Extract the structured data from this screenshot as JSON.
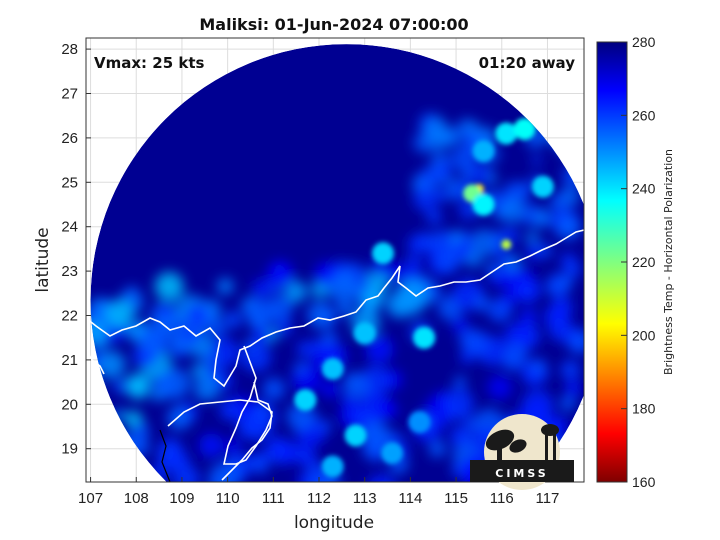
{
  "chart_data": {
    "type": "heatmap",
    "title": "Maliksi: 01-Jun-2024 07:00:00",
    "xlabel": "longitude",
    "ylabel": "latitude",
    "xlim": [
      106.9,
      117.8
    ],
    "ylim": [
      18.25,
      28.25
    ],
    "xticks": [
      107,
      108,
      109,
      110,
      111,
      112,
      113,
      114,
      115,
      116,
      117
    ],
    "yticks": [
      19,
      20,
      21,
      22,
      23,
      24,
      25,
      26,
      27,
      28
    ],
    "grid": true,
    "annotations": {
      "left": "Vmax: 25 kts",
      "right": "01:20 away"
    },
    "colorbar": {
      "label": "Brightness Temp - Horizontal Polarization",
      "range": [
        160,
        280
      ],
      "ticks": [
        160,
        180,
        200,
        220,
        240,
        260,
        280
      ],
      "colormap": "jet"
    },
    "swath": {
      "center_lon": 112.6,
      "center_lat": 22.35,
      "radius_deg": 5.6
    },
    "background_value": 278,
    "features": [
      {
        "lon": 115.5,
        "lat": 24.85,
        "value": 200
      },
      {
        "lon": 115.35,
        "lat": 24.75,
        "value": 222
      },
      {
        "lon": 116.1,
        "lat": 23.6,
        "value": 212
      },
      {
        "lon": 115.6,
        "lat": 24.5,
        "value": 238
      },
      {
        "lon": 116.1,
        "lat": 26.1,
        "value": 240
      },
      {
        "lon": 116.5,
        "lat": 26.2,
        "value": 236
      },
      {
        "lon": 115.6,
        "lat": 25.7,
        "value": 246
      },
      {
        "lon": 116.9,
        "lat": 24.9,
        "value": 242
      },
      {
        "lon": 113.4,
        "lat": 23.4,
        "value": 242
      },
      {
        "lon": 114.3,
        "lat": 21.5,
        "value": 240
      },
      {
        "lon": 113.0,
        "lat": 21.6,
        "value": 244
      },
      {
        "lon": 112.3,
        "lat": 20.8,
        "value": 244
      },
      {
        "lon": 111.7,
        "lat": 20.1,
        "value": 242
      },
      {
        "lon": 112.8,
        "lat": 19.3,
        "value": 242
      },
      {
        "lon": 112.3,
        "lat": 18.6,
        "value": 246
      },
      {
        "lon": 113.6,
        "lat": 18.9,
        "value": 248
      },
      {
        "lon": 114.2,
        "lat": 19.6,
        "value": 250
      }
    ]
  },
  "logo": {
    "text": "CIMSS"
  },
  "colors": {
    "coast": "#ffffff",
    "background": "#00007f",
    "axes_border": "#333333"
  }
}
